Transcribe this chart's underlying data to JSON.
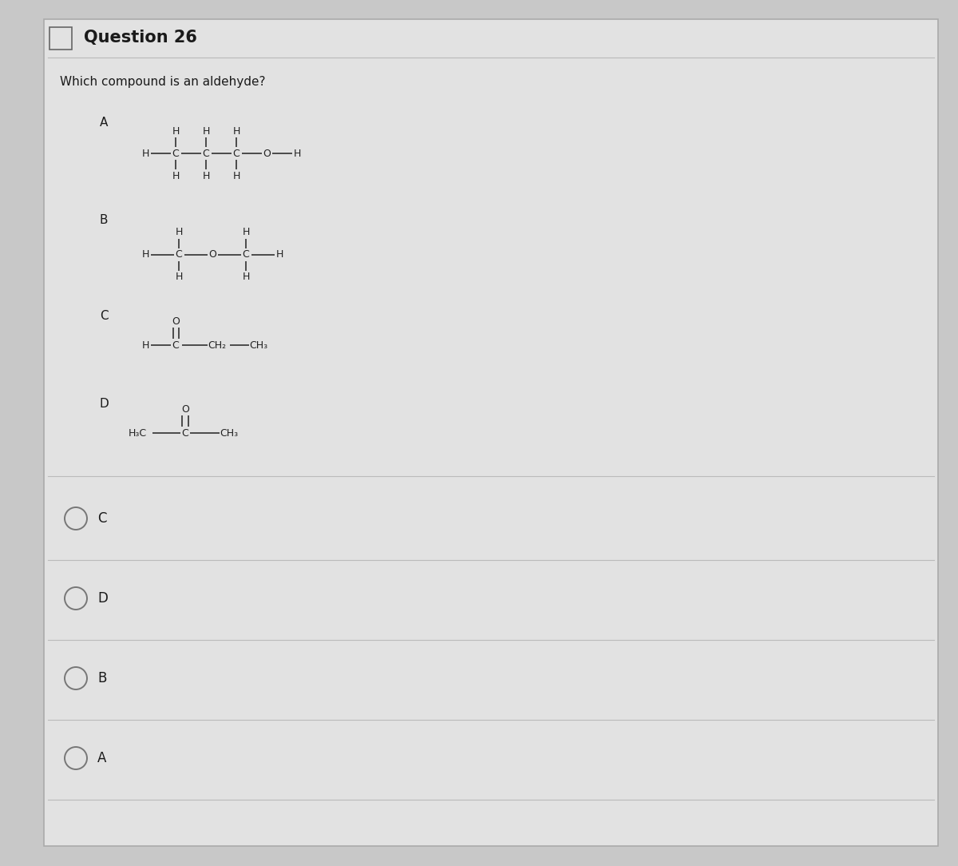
{
  "title": "Question 26",
  "question": "Which compound is an aldehyde?",
  "outer_bg": "#c8c8c8",
  "panel_bg": "#e2e2e2",
  "text_color": "#1a1a1a",
  "structure_color": "#222222",
  "options": [
    "C",
    "D",
    "B",
    "A"
  ],
  "font_size_title": 15,
  "font_size_question": 11,
  "font_size_label": 11,
  "font_size_atom": 9,
  "font_size_option": 12
}
